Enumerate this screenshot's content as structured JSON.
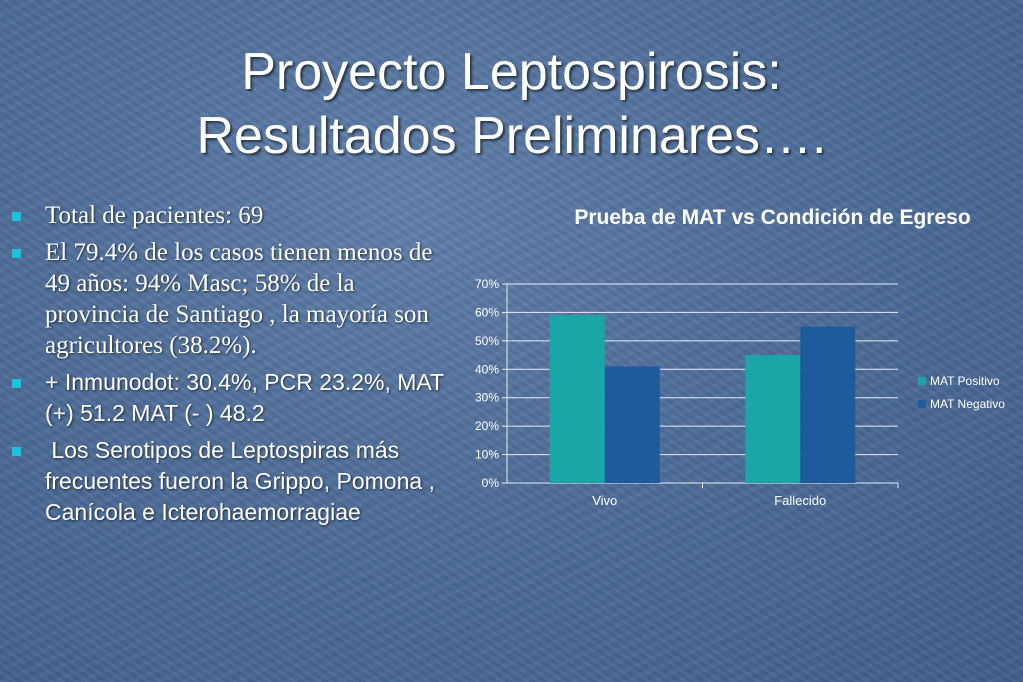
{
  "slide": {
    "title_line1": "Proyecto Leptospirosis:",
    "title_line2": "Resultados Preliminares…."
  },
  "bullets": [
    {
      "text": "Total de pacientes: 69"
    },
    {
      "text": "El 79.4% de los casos tienen menos de 49 años: 94% Masc; 58% de la provincia de Santiago , la mayoría son agricultores (38.2%)."
    },
    {
      "text": "+ Inmunodot: 30.4%, PCR 23.2%, MAT (+) 51.2  MAT (- ) 48.2"
    },
    {
      "text": " Los Serotipos de Leptospiras más frecuentes fueron la Grippo, Pomona , Canícola e Icterohaemorragiae"
    }
  ],
  "chart_data": {
    "type": "bar",
    "title": "Prueba de MAT vs Condición de Egreso",
    "categories": [
      "Vivo",
      "Fallecido"
    ],
    "series": [
      {
        "name": "MAT Positivo",
        "values": [
          59,
          45
        ],
        "color": "#1aa6a6"
      },
      {
        "name": "MAT Negativo",
        "values": [
          41,
          55
        ],
        "color": "#1e5b9c"
      }
    ],
    "ylim": [
      0,
      70
    ],
    "yticks": [
      "0%",
      "10%",
      "20%",
      "30%",
      "40%",
      "50%",
      "60%",
      "70%"
    ],
    "grid": true,
    "legend_position": "right"
  }
}
